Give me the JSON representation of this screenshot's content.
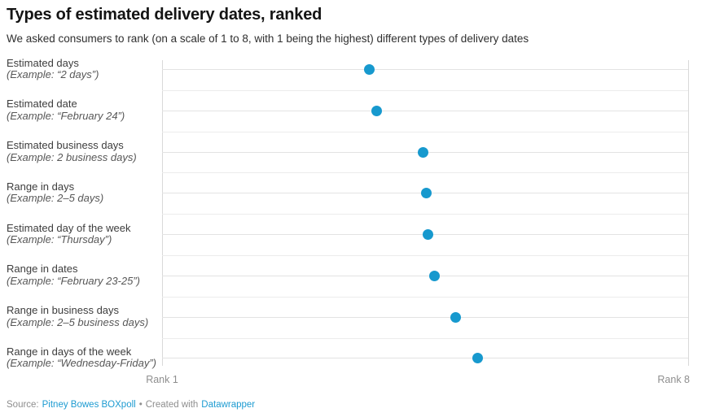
{
  "chart_data": {
    "type": "scatter",
    "title": "Types of estimated delivery dates, ranked",
    "subtitle": "We asked consumers to rank (on a scale of 1 to 8, with 1 being the highest) different types of delivery dates",
    "categories": [
      "Estimated days",
      "Estimated date",
      "Estimated business days",
      "Range in days",
      "Estimated day of the week",
      "Range in dates",
      "Range in business days",
      "Range in days of the week"
    ],
    "examples": [
      "(Example: “2 days”)",
      "(Example: “February 24”)",
      "(Example: 2 business days)",
      "(Example: 2–5 days)",
      "(Example: “Thursday”)",
      "(Example: “February 23-25”)",
      "(Example: 2–5 business days)",
      "(Example: “Wednesday-Friday”)"
    ],
    "values": [
      3.76,
      3.86,
      4.47,
      4.52,
      4.54,
      4.63,
      4.91,
      5.2
    ],
    "x_axis": {
      "min": 1,
      "max": 8,
      "left_label": "Rank 1",
      "right_label": "Rank 8"
    },
    "grid": true,
    "legend": "none"
  },
  "colors": {
    "dot": "#1799ce",
    "link": "#1d9bd1"
  },
  "footer": {
    "source_label": "Source:",
    "source_link": "Pitney Bowes BOXpoll",
    "bullet": "•",
    "created_label": "Created with",
    "tool_link": "Datawrapper"
  }
}
